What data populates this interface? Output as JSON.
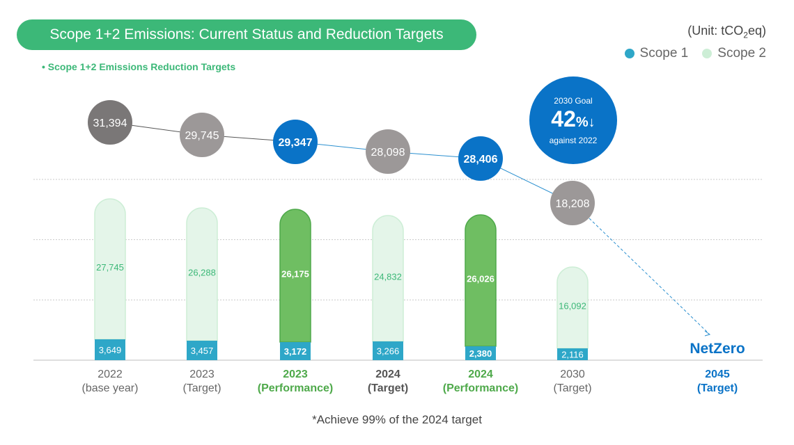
{
  "header": {
    "title": "Scope 1+2 Emissions: Current Status and Reduction Targets",
    "unit_prefix": "(Unit: tCO",
    "unit_sub": "2",
    "unit_suffix": "eq)",
    "subtitle": "• Scope 1+2 Emissions Reduction Targets"
  },
  "legend": {
    "scope1": "Scope 1",
    "scope2": "Scope 2"
  },
  "goal": {
    "line1": "2030 Goal",
    "value": "42",
    "pct": "%↓",
    "line3": "against 2022"
  },
  "footnote": "*Achieve 99% of the 2024 target",
  "colors": {
    "scope1": "#2ea7c8",
    "scope2_light": "#e4f5e9",
    "scope2_border": "#cdeed6",
    "scope2_perf": "#6fbe62",
    "scope2_perf_border": "#4ea94a",
    "label_green": "#3cb878",
    "target_circle": "#9c9898",
    "base_circle": "#7a7777",
    "perf_circle": "#0a73c7",
    "netzero": "#0a73c7"
  },
  "chart_data": {
    "type": "bar",
    "stacked": true,
    "categories": [
      {
        "line1": "2022",
        "line2": "(base year)",
        "style": "normal"
      },
      {
        "line1": "2023",
        "line2": "(Target)",
        "style": "normal"
      },
      {
        "line1": "2023",
        "line2": "(Performance)",
        "style": "perf"
      },
      {
        "line1": "2024",
        "line2": "(Target)",
        "style": "bold"
      },
      {
        "line1": "2024",
        "line2": "(Performance)",
        "style": "perf"
      },
      {
        "line1": "2030",
        "line2": "(Target)",
        "style": "normal"
      },
      {
        "line1": "2045",
        "line2": "(Target)",
        "style": "netzero"
      }
    ],
    "series": [
      {
        "name": "Scope 1",
        "values": [
          3649,
          3457,
          3172,
          3266,
          2380,
          2116,
          null
        ],
        "labels": [
          "3,649",
          "3,457",
          "3,172",
          "3,266",
          "2,380",
          "2,116",
          ""
        ]
      },
      {
        "name": "Scope 2",
        "values": [
          27745,
          26288,
          26175,
          24832,
          26026,
          16092,
          null
        ],
        "labels": [
          "27,745",
          "26,288",
          "26,175",
          "24,832",
          "26,026",
          "16,092",
          ""
        ]
      }
    ],
    "totals": [
      31394,
      29745,
      29347,
      28098,
      28406,
      18208,
      0
    ],
    "total_labels": [
      "31,394",
      "29,745",
      "29,347",
      "28,098",
      "28,406",
      "18,208",
      ""
    ],
    "total_kind": [
      "base",
      "target",
      "perf",
      "target",
      "perf",
      "target",
      "none"
    ],
    "bar_kind": [
      "target",
      "target",
      "perf",
      "target",
      "perf",
      "target",
      "none"
    ],
    "netzero_label": "NetZero",
    "ylim": [
      0,
      31394
    ]
  }
}
